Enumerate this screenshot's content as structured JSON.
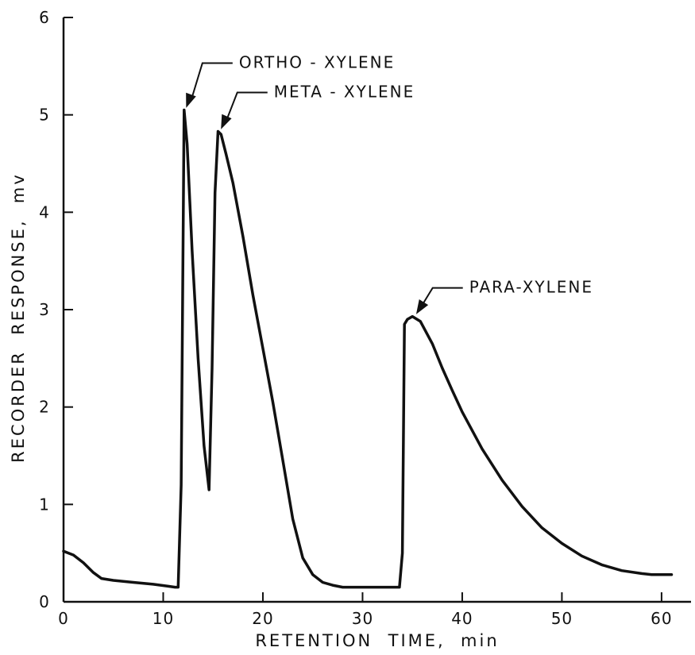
{
  "chart_data": {
    "type": "line",
    "xlabel": "RETENTION  TIME,  min",
    "ylabel": "RECORDER  RESPONSE,  mv",
    "xlim": [
      0,
      62
    ],
    "ylim": [
      0,
      6
    ],
    "x_ticks": [
      0,
      10,
      20,
      30,
      40,
      50,
      60
    ],
    "y_ticks": [
      0,
      1,
      2,
      3,
      4,
      5,
      6
    ],
    "x_tick_labels": [
      "0",
      "10",
      "20",
      "30",
      "40",
      "50",
      "60"
    ],
    "y_tick_labels": [
      "0",
      "1",
      "2",
      "3",
      "4",
      "5",
      "6"
    ],
    "grid": false,
    "series": [
      {
        "x": [
          0,
          1,
          2,
          3,
          3.8,
          5,
          7,
          9,
          10.5,
          11.2,
          11.5,
          11.8,
          12.1,
          12.4,
          12.9,
          13.5,
          14.1,
          14.6,
          14.9,
          15.2,
          15.5,
          15.8,
          16.3,
          17,
          18,
          19,
          20,
          21,
          22,
          23,
          24,
          25,
          26,
          27,
          28,
          29,
          30,
          31,
          32,
          33,
          33.7,
          34,
          34.2,
          34.5,
          35,
          35.8,
          37,
          38,
          39,
          40,
          42,
          44,
          46,
          48,
          50,
          52,
          54,
          56,
          58,
          59,
          60,
          61
        ],
        "y": [
          0.52,
          0.48,
          0.4,
          0.3,
          0.24,
          0.22,
          0.2,
          0.18,
          0.16,
          0.15,
          0.15,
          1.2,
          5.05,
          4.7,
          3.6,
          2.5,
          1.6,
          1.15,
          2.4,
          4.2,
          4.83,
          4.8,
          4.6,
          4.3,
          3.75,
          3.15,
          2.6,
          2.05,
          1.45,
          0.85,
          0.45,
          0.28,
          0.2,
          0.17,
          0.15,
          0.15,
          0.15,
          0.15,
          0.15,
          0.15,
          0.15,
          0.5,
          2.85,
          2.9,
          2.93,
          2.88,
          2.65,
          2.4,
          2.17,
          1.95,
          1.57,
          1.25,
          0.98,
          0.76,
          0.6,
          0.47,
          0.38,
          0.32,
          0.29,
          0.28,
          0.28,
          0.28
        ]
      }
    ],
    "annotations": [
      {
        "text": "ORTHO - XYLENE",
        "x": 12.1,
        "y": 5.05
      },
      {
        "text": "META - XYLENE",
        "x": 15.6,
        "y": 4.83
      },
      {
        "text": "PARA-XYLENE",
        "x": 35.2,
        "y": 2.93
      }
    ]
  }
}
